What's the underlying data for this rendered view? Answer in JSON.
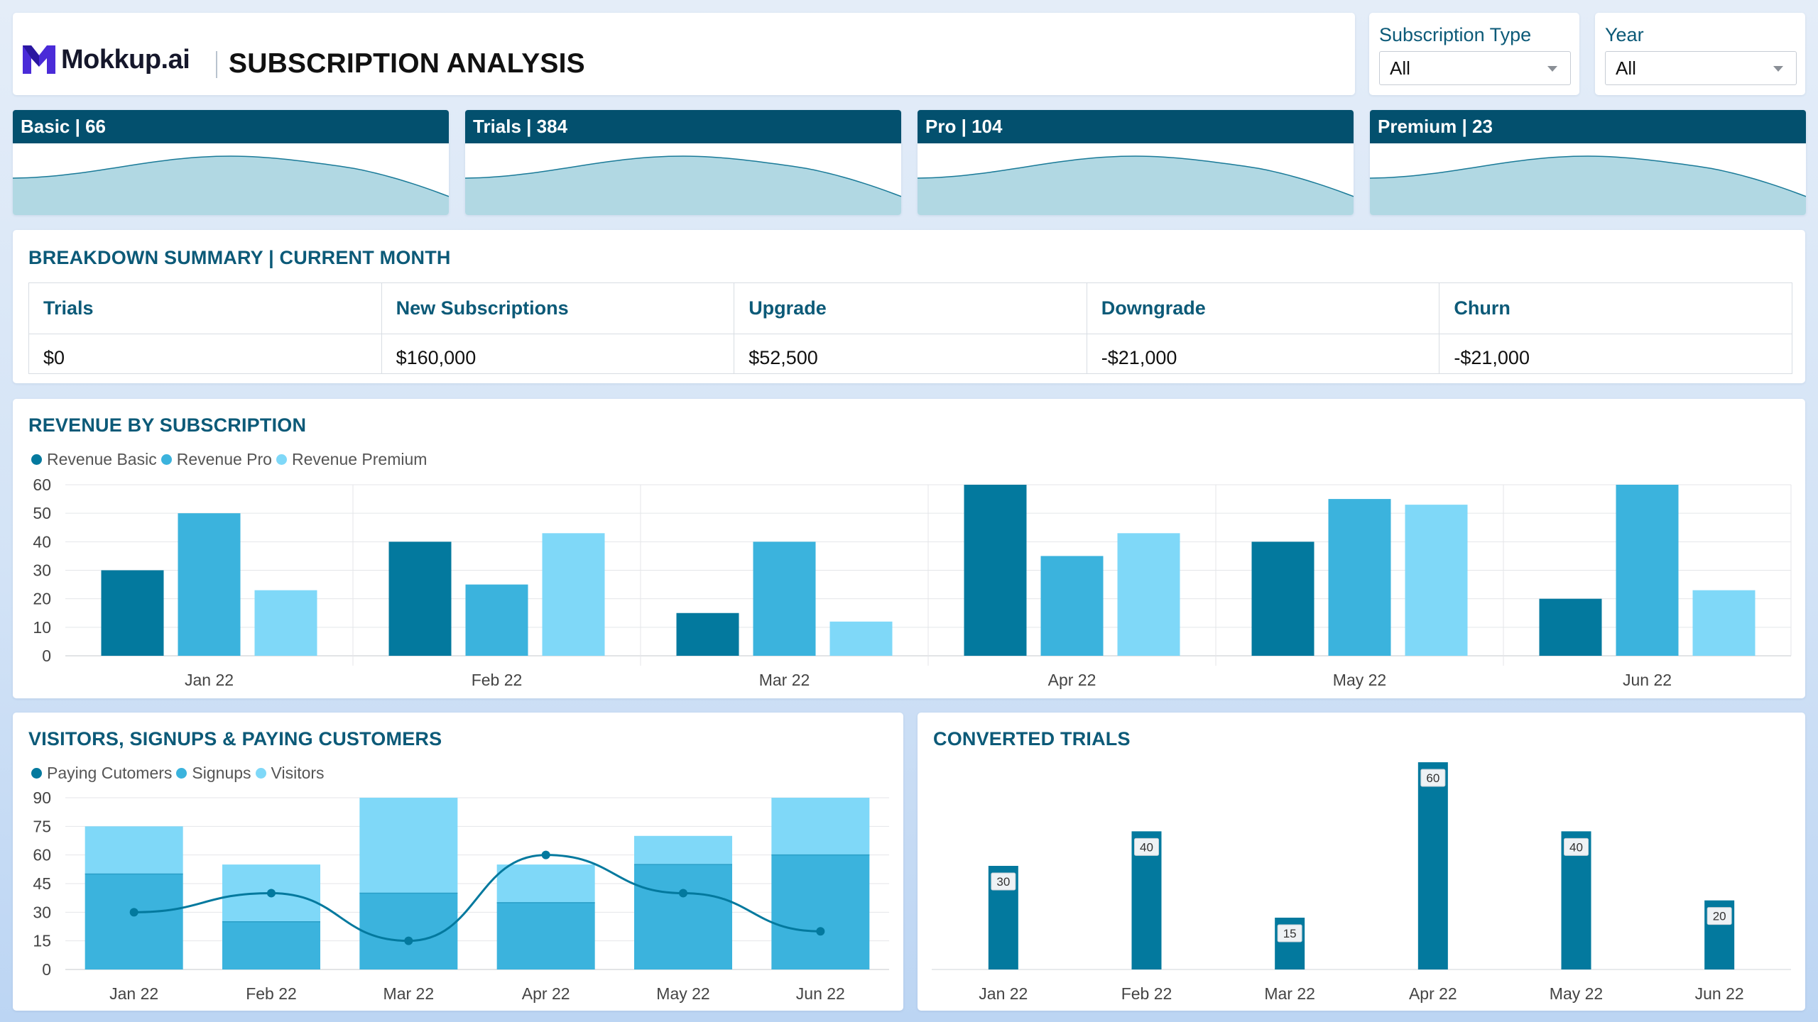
{
  "header": {
    "logo_text": "Mokkup.ai",
    "title": "SUBSCRIPTION ANALYSIS"
  },
  "filters": [
    {
      "label": "Subscription Type",
      "value": "All"
    },
    {
      "label": "Year",
      "value": "All"
    }
  ],
  "kpis": [
    {
      "label": "Basic | 66"
    },
    {
      "label": "Trials | 384"
    },
    {
      "label": "Pro | 104"
    },
    {
      "label": "Premium | 23"
    }
  ],
  "breakdown": {
    "title": "BREAKDOWN SUMMARY | CURRENT MONTH",
    "headers": [
      "Trials",
      "New Subscriptions",
      "Upgrade",
      "Downgrade",
      "Churn"
    ],
    "values": [
      "$0",
      "$160,000",
      "$52,500",
      "-$21,000",
      "-$21,000"
    ]
  },
  "colors": {
    "dark": "#03799e",
    "mid": "#3bb3dd",
    "light": "#7fd8f8",
    "header": "#03506e",
    "area": "#b1d8e3",
    "area_line": "#1a7a98"
  },
  "chart_data": [
    {
      "id": "revenue",
      "type": "bar",
      "title": "REVENUE BY SUBSCRIPTION",
      "categories": [
        "Jan 22",
        "Feb 22",
        "Mar 22",
        "Apr 22",
        "May 22",
        "Jun 22"
      ],
      "series": [
        {
          "name": "Revenue Basic",
          "values": [
            30,
            40,
            15,
            60,
            40,
            20
          ]
        },
        {
          "name": "Revenue Pro",
          "values": [
            50,
            25,
            40,
            35,
            55,
            60
          ]
        },
        {
          "name": "Revenue Premium",
          "values": [
            23,
            43,
            12,
            43,
            53,
            23
          ]
        }
      ],
      "ylim": [
        0,
        60
      ],
      "yticks": [
        0,
        10,
        20,
        30,
        40,
        50,
        60
      ],
      "grid": true,
      "legend": "top-left"
    },
    {
      "id": "visitors",
      "type": "bar",
      "title": "VISITORS, SIGNUPS & PAYING CUSTOMERS",
      "categories": [
        "Jan 22",
        "Feb 22",
        "Mar 22",
        "Apr 22",
        "May 22",
        "Jun 22"
      ],
      "series": [
        {
          "name": "Paying Cutomers",
          "type": "line",
          "values": [
            30,
            40,
            15,
            60,
            40,
            20
          ]
        },
        {
          "name": "Signups",
          "values": [
            50,
            25,
            40,
            35,
            55,
            60
          ]
        },
        {
          "name": "Visitors",
          "values": [
            25,
            30,
            50,
            20,
            15,
            30
          ]
        }
      ],
      "ylim": [
        0,
        90
      ],
      "yticks": [
        0,
        15,
        30,
        45,
        60,
        75,
        90
      ],
      "grid": true,
      "legend": "top-left"
    },
    {
      "id": "converted",
      "type": "bar",
      "title": "CONVERTED TRIALS",
      "categories": [
        "Jan 22",
        "Feb 22",
        "Mar 22",
        "Apr 22",
        "May 22",
        "Jun 22"
      ],
      "values": [
        30,
        40,
        15,
        60,
        40,
        20
      ],
      "ylim": [
        0,
        60
      ],
      "grid": false,
      "data_labels": true
    }
  ]
}
